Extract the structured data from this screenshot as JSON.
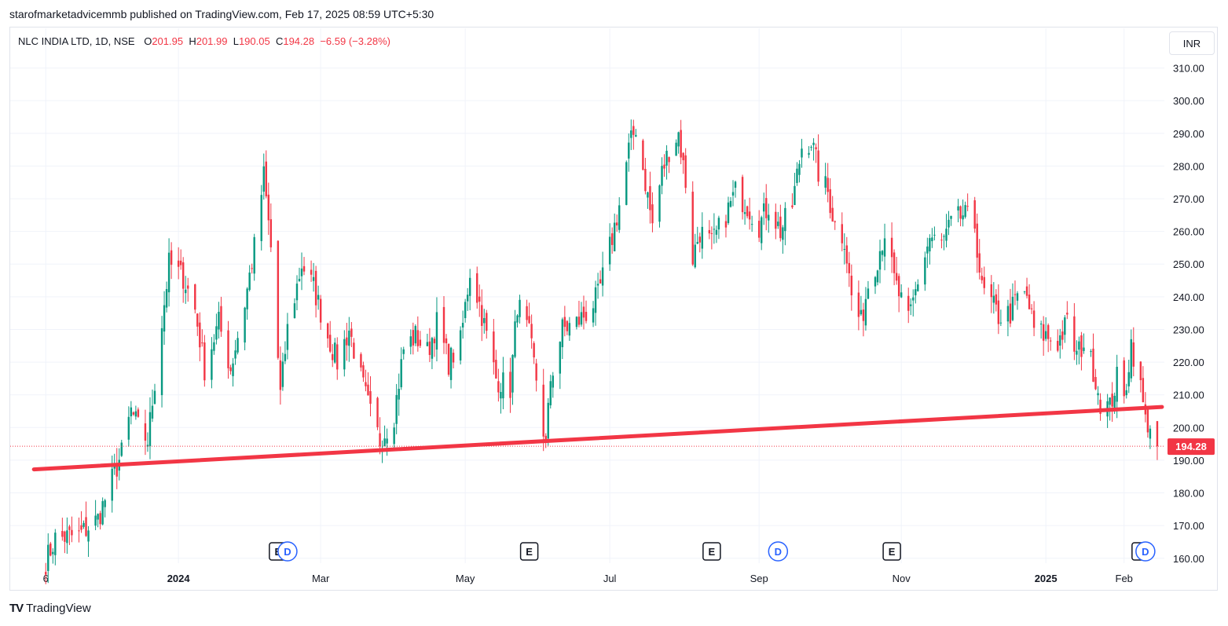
{
  "header": {
    "published_text": "starofmarketadvicemmb published on TradingView.com, Feb 17, 2025 08:59 UTC+5:30"
  },
  "legend": {
    "symbol": "NLC INDIA LTD, 1D, NSE",
    "o_label": "O",
    "o_value": "201.95",
    "h_label": "H",
    "h_value": "201.99",
    "l_label": "L",
    "l_value": "190.05",
    "c_label": "C",
    "c_value": "194.28",
    "change": "−6.59 (−3.28%)"
  },
  "currency": "INR",
  "footer": {
    "brand": "TradingView",
    "logo": "TV"
  },
  "colors": {
    "up": "#089981",
    "down": "#f23645",
    "trendline": "#f23645",
    "grid": "#f0f3fa"
  },
  "chart_data": {
    "type": "candlestick",
    "symbol": "NLC INDIA LTD",
    "interval": "1D",
    "exchange": "NSE",
    "ylim": [
      157,
      318
    ],
    "y_ticks": [
      "310.00",
      "300.00",
      "290.00",
      "280.00",
      "270.00",
      "260.00",
      "250.00",
      "240.00",
      "230.00",
      "220.00",
      "210.00",
      "200.00",
      "190.00",
      "180.00",
      "170.00",
      "160.00"
    ],
    "x_ticks": [
      {
        "label": "6",
        "bold": false
      },
      {
        "label": "2024",
        "bold": true
      },
      {
        "label": "Mar",
        "bold": false
      },
      {
        "label": "May",
        "bold": false
      },
      {
        "label": "Jul",
        "bold": false
      },
      {
        "label": "Sep",
        "bold": false
      },
      {
        "label": "Nov",
        "bold": false
      },
      {
        "label": "2025",
        "bold": true
      },
      {
        "label": "Feb",
        "bold": false
      }
    ],
    "last_price": "194.28",
    "trendline": {
      "start": [
        "2023-11-01",
        187.2
      ],
      "end": [
        "2025-02-17",
        206.3
      ]
    },
    "events": [
      {
        "label": "E",
        "date": "2024-02-12"
      },
      {
        "label": "D",
        "date": "2024-02-16"
      },
      {
        "label": "E",
        "date": "2024-05-28"
      },
      {
        "label": "E",
        "date": "2024-08-13"
      },
      {
        "label": "D",
        "date": "2024-09-10"
      },
      {
        "label": "E",
        "date": "2024-10-28"
      },
      {
        "label": "E",
        "date": "2025-02-10"
      },
      {
        "label": "D",
        "date": "2025-02-12"
      }
    ],
    "anchors": [
      [
        "2023-11-06",
        159
      ],
      [
        "2023-11-10",
        166
      ],
      [
        "2023-11-20",
        167
      ],
      [
        "2023-11-28",
        172
      ],
      [
        "2023-12-01",
        178
      ],
      [
        "2023-12-05",
        186
      ],
      [
        "2023-12-08",
        192
      ],
      [
        "2023-12-12",
        205
      ],
      [
        "2023-12-15",
        200
      ],
      [
        "2023-12-19",
        196
      ],
      [
        "2023-12-22",
        214
      ],
      [
        "2023-12-28",
        250
      ],
      [
        "2024-01-03",
        246
      ],
      [
        "2024-01-08",
        236
      ],
      [
        "2024-01-12",
        218
      ],
      [
        "2024-01-18",
        232
      ],
      [
        "2024-01-23",
        218
      ],
      [
        "2024-01-29",
        238
      ],
      [
        "2024-02-02",
        255
      ],
      [
        "2024-02-06",
        277
      ],
      [
        "2024-02-09",
        255
      ],
      [
        "2024-02-13",
        210
      ],
      [
        "2024-02-16",
        230
      ],
      [
        "2024-02-22",
        250
      ],
      [
        "2024-02-27",
        243
      ],
      [
        "2024-03-04",
        228
      ],
      [
        "2024-03-08",
        220
      ],
      [
        "2024-03-13",
        230
      ],
      [
        "2024-03-18",
        215
      ],
      [
        "2024-03-22",
        204
      ],
      [
        "2024-03-26",
        196
      ],
      [
        "2024-04-01",
        204
      ],
      [
        "2024-04-05",
        224
      ],
      [
        "2024-04-10",
        228
      ],
      [
        "2024-04-15",
        223
      ],
      [
        "2024-04-19",
        232
      ],
      [
        "2024-04-24",
        220
      ],
      [
        "2024-04-29",
        226
      ],
      [
        "2024-05-03",
        248
      ],
      [
        "2024-05-07",
        238
      ],
      [
        "2024-05-10",
        228
      ],
      [
        "2024-05-14",
        215
      ],
      [
        "2024-05-20",
        212
      ],
      [
        "2024-05-23",
        238
      ],
      [
        "2024-05-28",
        228
      ],
      [
        "2024-05-31",
        215
      ],
      [
        "2024-06-04",
        194
      ],
      [
        "2024-06-06",
        215
      ],
      [
        "2024-06-11",
        230
      ],
      [
        "2024-06-17",
        232
      ],
      [
        "2024-06-21",
        235
      ],
      [
        "2024-06-26",
        240
      ],
      [
        "2024-07-01",
        255
      ],
      [
        "2024-07-05",
        268
      ],
      [
        "2024-07-09",
        285
      ],
      [
        "2024-07-12",
        292
      ],
      [
        "2024-07-16",
        275
      ],
      [
        "2024-07-19",
        262
      ],
      [
        "2024-07-23",
        278
      ],
      [
        "2024-07-26",
        285
      ],
      [
        "2024-07-30",
        290
      ],
      [
        "2024-08-02",
        275
      ],
      [
        "2024-08-05",
        252
      ],
      [
        "2024-08-08",
        260
      ],
      [
        "2024-08-13",
        256
      ],
      [
        "2024-08-19",
        265
      ],
      [
        "2024-08-23",
        272
      ],
      [
        "2024-08-28",
        268
      ],
      [
        "2024-09-02",
        262
      ],
      [
        "2024-09-06",
        268
      ],
      [
        "2024-09-11",
        260
      ],
      [
        "2024-09-16",
        268
      ],
      [
        "2024-09-20",
        286
      ],
      [
        "2024-09-24",
        288
      ],
      [
        "2024-09-27",
        278
      ],
      [
        "2024-10-01",
        272
      ],
      [
        "2024-10-04",
        262
      ],
      [
        "2024-10-08",
        258
      ],
      [
        "2024-10-11",
        240
      ],
      [
        "2024-10-15",
        232
      ],
      [
        "2024-10-18",
        244
      ],
      [
        "2024-10-22",
        252
      ],
      [
        "2024-10-25",
        260
      ],
      [
        "2024-10-29",
        245
      ],
      [
        "2024-11-04",
        232
      ],
      [
        "2024-11-08",
        245
      ],
      [
        "2024-11-13",
        258
      ],
      [
        "2024-11-18",
        256
      ],
      [
        "2024-11-22",
        262
      ],
      [
        "2024-11-27",
        265
      ],
      [
        "2024-12-02",
        262
      ],
      [
        "2024-12-05",
        242
      ],
      [
        "2024-12-09",
        238
      ],
      [
        "2024-12-12",
        234
      ],
      [
        "2024-12-17",
        235
      ],
      [
        "2024-12-20",
        240
      ],
      [
        "2024-12-24",
        240
      ],
      [
        "2024-12-27",
        230
      ],
      [
        "2025-01-01",
        228
      ],
      [
        "2025-01-06",
        226
      ],
      [
        "2025-01-10",
        232
      ],
      [
        "2025-01-14",
        222
      ],
      [
        "2025-01-17",
        226
      ],
      [
        "2025-01-21",
        218
      ],
      [
        "2025-01-24",
        208
      ],
      [
        "2025-01-28",
        206
      ],
      [
        "2025-01-31",
        215
      ],
      [
        "2025-02-03",
        208
      ],
      [
        "2025-02-06",
        226
      ],
      [
        "2025-02-10",
        212
      ],
      [
        "2025-02-12",
        202
      ],
      [
        "2025-02-14",
        201
      ],
      [
        "2025-02-17",
        194.28
      ]
    ]
  }
}
